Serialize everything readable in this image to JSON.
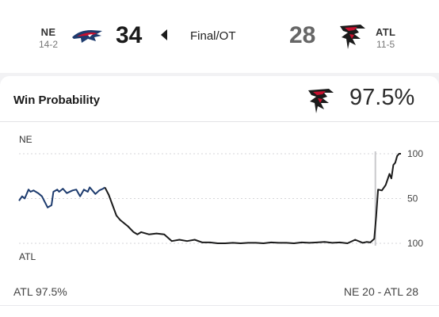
{
  "home_team": {
    "abbr": "NE",
    "record": "14-2",
    "score": "34"
  },
  "away_team": {
    "abbr": "ATL",
    "record": "11-5",
    "score": "28"
  },
  "game_status": "Final/OT",
  "win_probability": {
    "title": "Win Probability",
    "value": "97.5%",
    "team_label_top": "NE",
    "team_label_bottom": "ATL"
  },
  "footer": {
    "left": "ATL 97.5%",
    "right": "NE 20  - ATL 28"
  },
  "colors": {
    "ne": "#1d3b6e",
    "atl": "#1b1b1b",
    "atl_red": "#c8102e",
    "ne_red": "#c8102e"
  },
  "chart_data": {
    "type": "line",
    "y_tick_labels": [
      "100",
      "50",
      "100"
    ],
    "ylim": [
      -100,
      100
    ],
    "legend": {
      "top": "NE",
      "bottom": "ATL"
    },
    "grid": true,
    "x_marker": 0.933,
    "series": [
      {
        "x": [
          0,
          0.008,
          0.015,
          0.025,
          0.03,
          0.038,
          0.05,
          0.06,
          0.075,
          0.085,
          0.09,
          0.1,
          0.105,
          0.115,
          0.125,
          0.14,
          0.15,
          0.16,
          0.17,
          0.18,
          0.185,
          0.2,
          0.21,
          0.22,
          0.225,
          0.235,
          0.245,
          0.255,
          0.265,
          0.275,
          0.285,
          0.3,
          0.31,
          0.32,
          0.34,
          0.36,
          0.38,
          0.4,
          0.42,
          0.44,
          0.46,
          0.48,
          0.5,
          0.52,
          0.54,
          0.56,
          0.58,
          0.6,
          0.62,
          0.64,
          0.66,
          0.68,
          0.7,
          0.72,
          0.74,
          0.76,
          0.78,
          0.8,
          0.82,
          0.84,
          0.86,
          0.88,
          0.9,
          0.91,
          0.92,
          0.93,
          0.935,
          0.94,
          0.95,
          0.96,
          0.97,
          0.975,
          0.98,
          0.985,
          0.99,
          0.995,
          1
        ],
        "y": [
          -5,
          5,
          0,
          20,
          15,
          18,
          12,
          5,
          -20,
          -15,
          15,
          20,
          15,
          22,
          12,
          18,
          20,
          5,
          20,
          15,
          25,
          10,
          18,
          22,
          25,
          8,
          -15,
          -38,
          -48,
          -55,
          -62,
          -75,
          -80,
          -75,
          -80,
          -78,
          -80,
          -95,
          -92,
          -95,
          -92,
          -98,
          -98,
          -100,
          -100,
          -99,
          -100,
          -99,
          -99,
          -100,
          -98,
          -99,
          -99,
          -100,
          -98,
          -99,
          -98,
          -97,
          -99,
          -98,
          -100,
          -92,
          -99,
          -97,
          -98,
          -90,
          -40,
          20,
          18,
          30,
          55,
          45,
          75,
          80,
          95,
          100,
          100
        ],
        "segments": [
          {
            "team": "NE",
            "from": 0,
            "to": 24
          },
          {
            "team": "ATL",
            "from": 24,
            "to": 76
          }
        ]
      }
    ]
  }
}
